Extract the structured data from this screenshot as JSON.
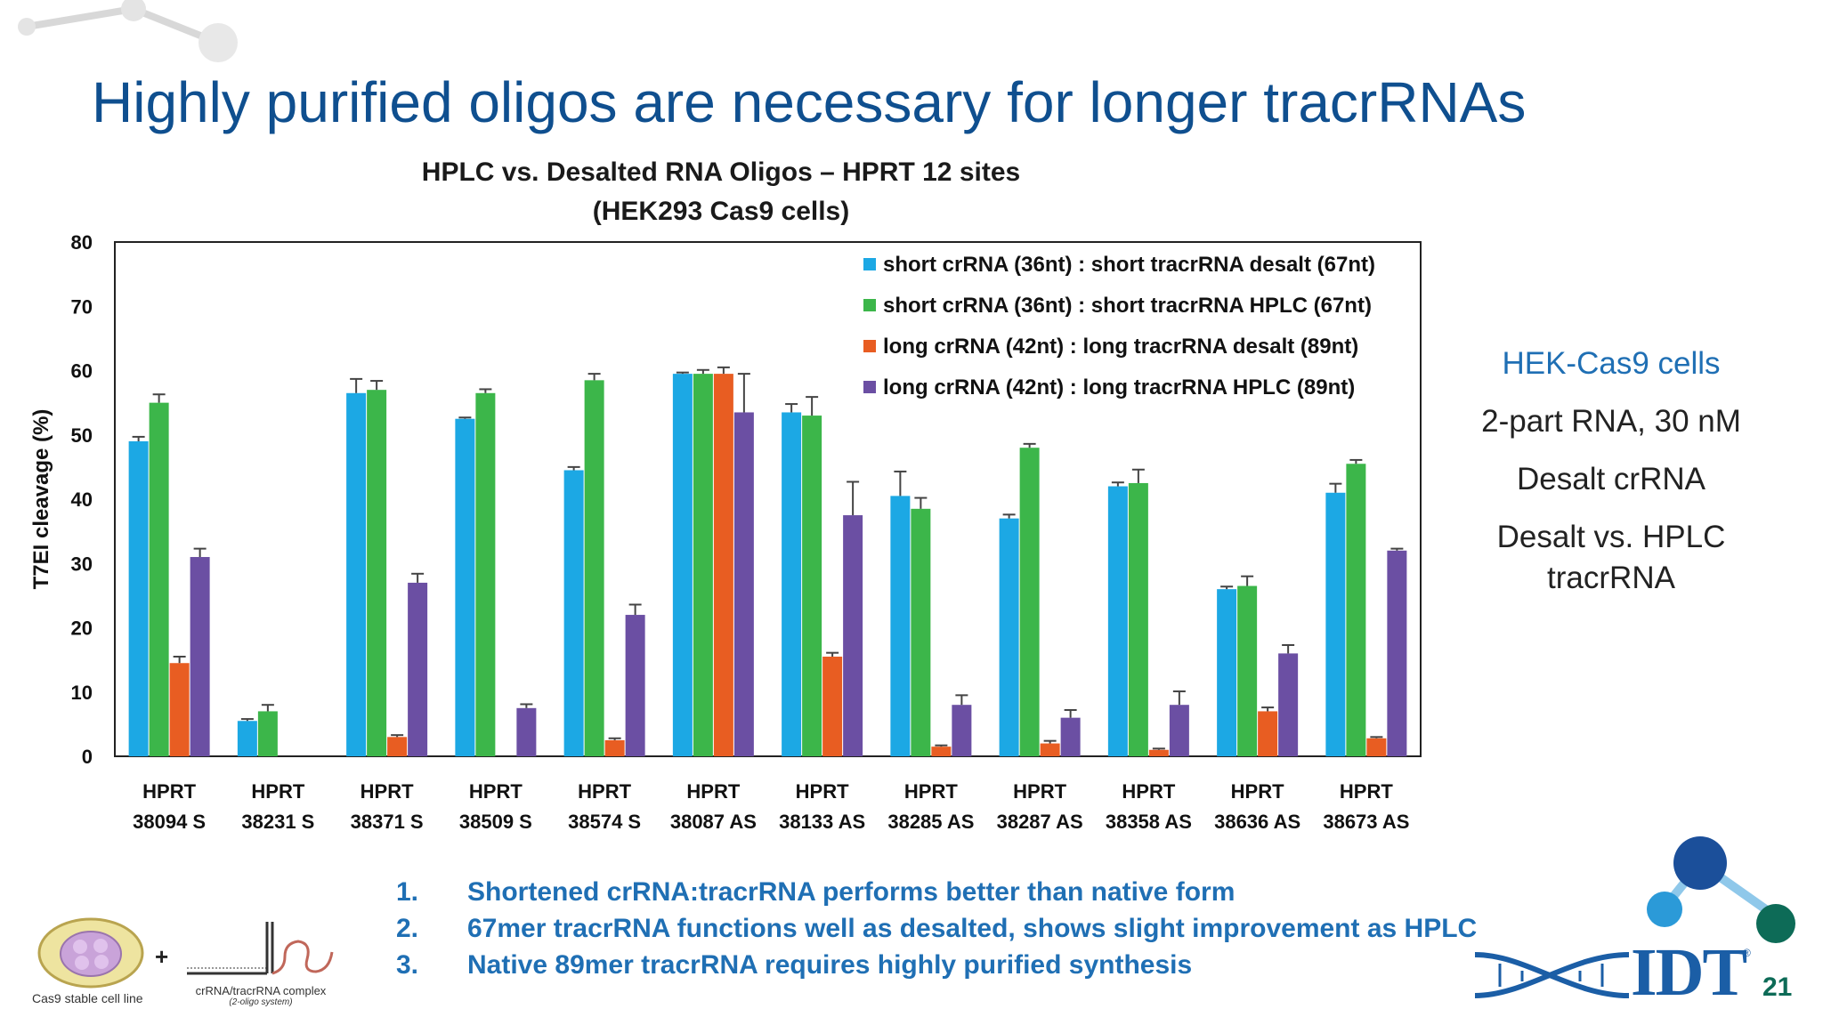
{
  "slide": {
    "title": "Highly purified oligos are necessary for longer tracrRNAs",
    "page_number": "21",
    "logo_text": "IDT",
    "logo_registered": "®"
  },
  "side_notes": [
    "HEK-Cas9 cells",
    "2-part RNA, 30 nM",
    "Desalt crRNA",
    "Desalt vs. HPLC",
    "tracrRNA"
  ],
  "findings": [
    {
      "num": "1.",
      "text": "Shortened crRNA:tracrRNA performs better than native form"
    },
    {
      "num": "2.",
      "text": "67mer tracrRNA functions well as desalted, shows slight improvement as HPLC"
    },
    {
      "num": "3.",
      "text": "Native 89mer tracrRNA requires highly purified synthesis"
    }
  ],
  "illustration": {
    "cell_label": "Cas9 stable cell line",
    "plus": "+",
    "complex_label": "crRNA/tracrRNA complex",
    "complex_sublabel": "(2-oligo system)"
  },
  "colors": {
    "title": "#0f4f8f",
    "accent": "#1f6fb4",
    "short_desalt": "#1ca8e4",
    "short_hplc": "#3cb64a",
    "long_desalt": "#e85d22",
    "long_hplc": "#6b4fa3"
  },
  "chart_data": {
    "type": "bar",
    "title_line1": "HPLC vs. Desalted RNA Oligos – HPRT 12 sites",
    "title_line2": "(HEK293 Cas9 cells)",
    "ylabel": "T7EI cleavage (%)",
    "xlabel": "",
    "ylim": [
      0,
      80
    ],
    "yticks": [
      0,
      10,
      20,
      30,
      40,
      50,
      60,
      70,
      80
    ],
    "grid": false,
    "legend_position": "top-right",
    "categories": [
      [
        "HPRT",
        "38094 S"
      ],
      [
        "HPRT",
        "38231 S"
      ],
      [
        "HPRT",
        "38371 S"
      ],
      [
        "HPRT",
        "38509 S"
      ],
      [
        "HPRT",
        "38574 S"
      ],
      [
        "HPRT",
        "38087 AS"
      ],
      [
        "HPRT",
        "38133 AS"
      ],
      [
        "HPRT",
        "38285 AS"
      ],
      [
        "HPRT",
        "38287 AS"
      ],
      [
        "HPRT",
        "38358 AS"
      ],
      [
        "HPRT",
        "38636 AS"
      ],
      [
        "HPRT",
        "38673 AS"
      ]
    ],
    "series": [
      {
        "name": "short crRNA (36nt) : short tracrRNA desalt (67nt)",
        "color": "#1ca8e4",
        "values": [
          49,
          5.5,
          56.5,
          52.5,
          44.5,
          59.5,
          53.5,
          40.5,
          37,
          42,
          26,
          41
        ],
        "errors": [
          0.7,
          0.3,
          2.2,
          0.2,
          0.5,
          0.2,
          1.3,
          3.8,
          0.6,
          0.6,
          0.4,
          1.4
        ]
      },
      {
        "name": "short crRNA (36nt) : short tracrRNA HPLC (67nt)",
        "color": "#3cb64a",
        "values": [
          55,
          7,
          57,
          56.5,
          58.5,
          59.5,
          53,
          38.5,
          48,
          42.5,
          26.5,
          45.5
        ],
        "errors": [
          1.3,
          1.0,
          1.4,
          0.6,
          1.0,
          0.6,
          2.9,
          1.7,
          0.6,
          2.1,
          1.5,
          0.6
        ]
      },
      {
        "name": "long crRNA (42nt) : long tracrRNA desalt (89nt)",
        "color": "#e85d22",
        "values": [
          14.5,
          null,
          3,
          null,
          2.5,
          59.5,
          15.5,
          1.5,
          2,
          1,
          7,
          2.8
        ],
        "errors": [
          1.0,
          null,
          0.3,
          null,
          0.3,
          1.0,
          0.6,
          0.2,
          0.4,
          0.2,
          0.6,
          0.2
        ]
      },
      {
        "name": "long crRNA (42nt) : long tracrRNA HPLC (89nt)",
        "color": "#6b4fa3",
        "values": [
          31,
          null,
          27,
          7.5,
          22,
          53.5,
          37.5,
          8,
          6,
          8,
          16,
          32
        ],
        "errors": [
          1.3,
          null,
          1.4,
          0.6,
          1.6,
          6.0,
          5.2,
          1.5,
          1.2,
          2.1,
          1.3,
          0.3
        ]
      }
    ]
  }
}
